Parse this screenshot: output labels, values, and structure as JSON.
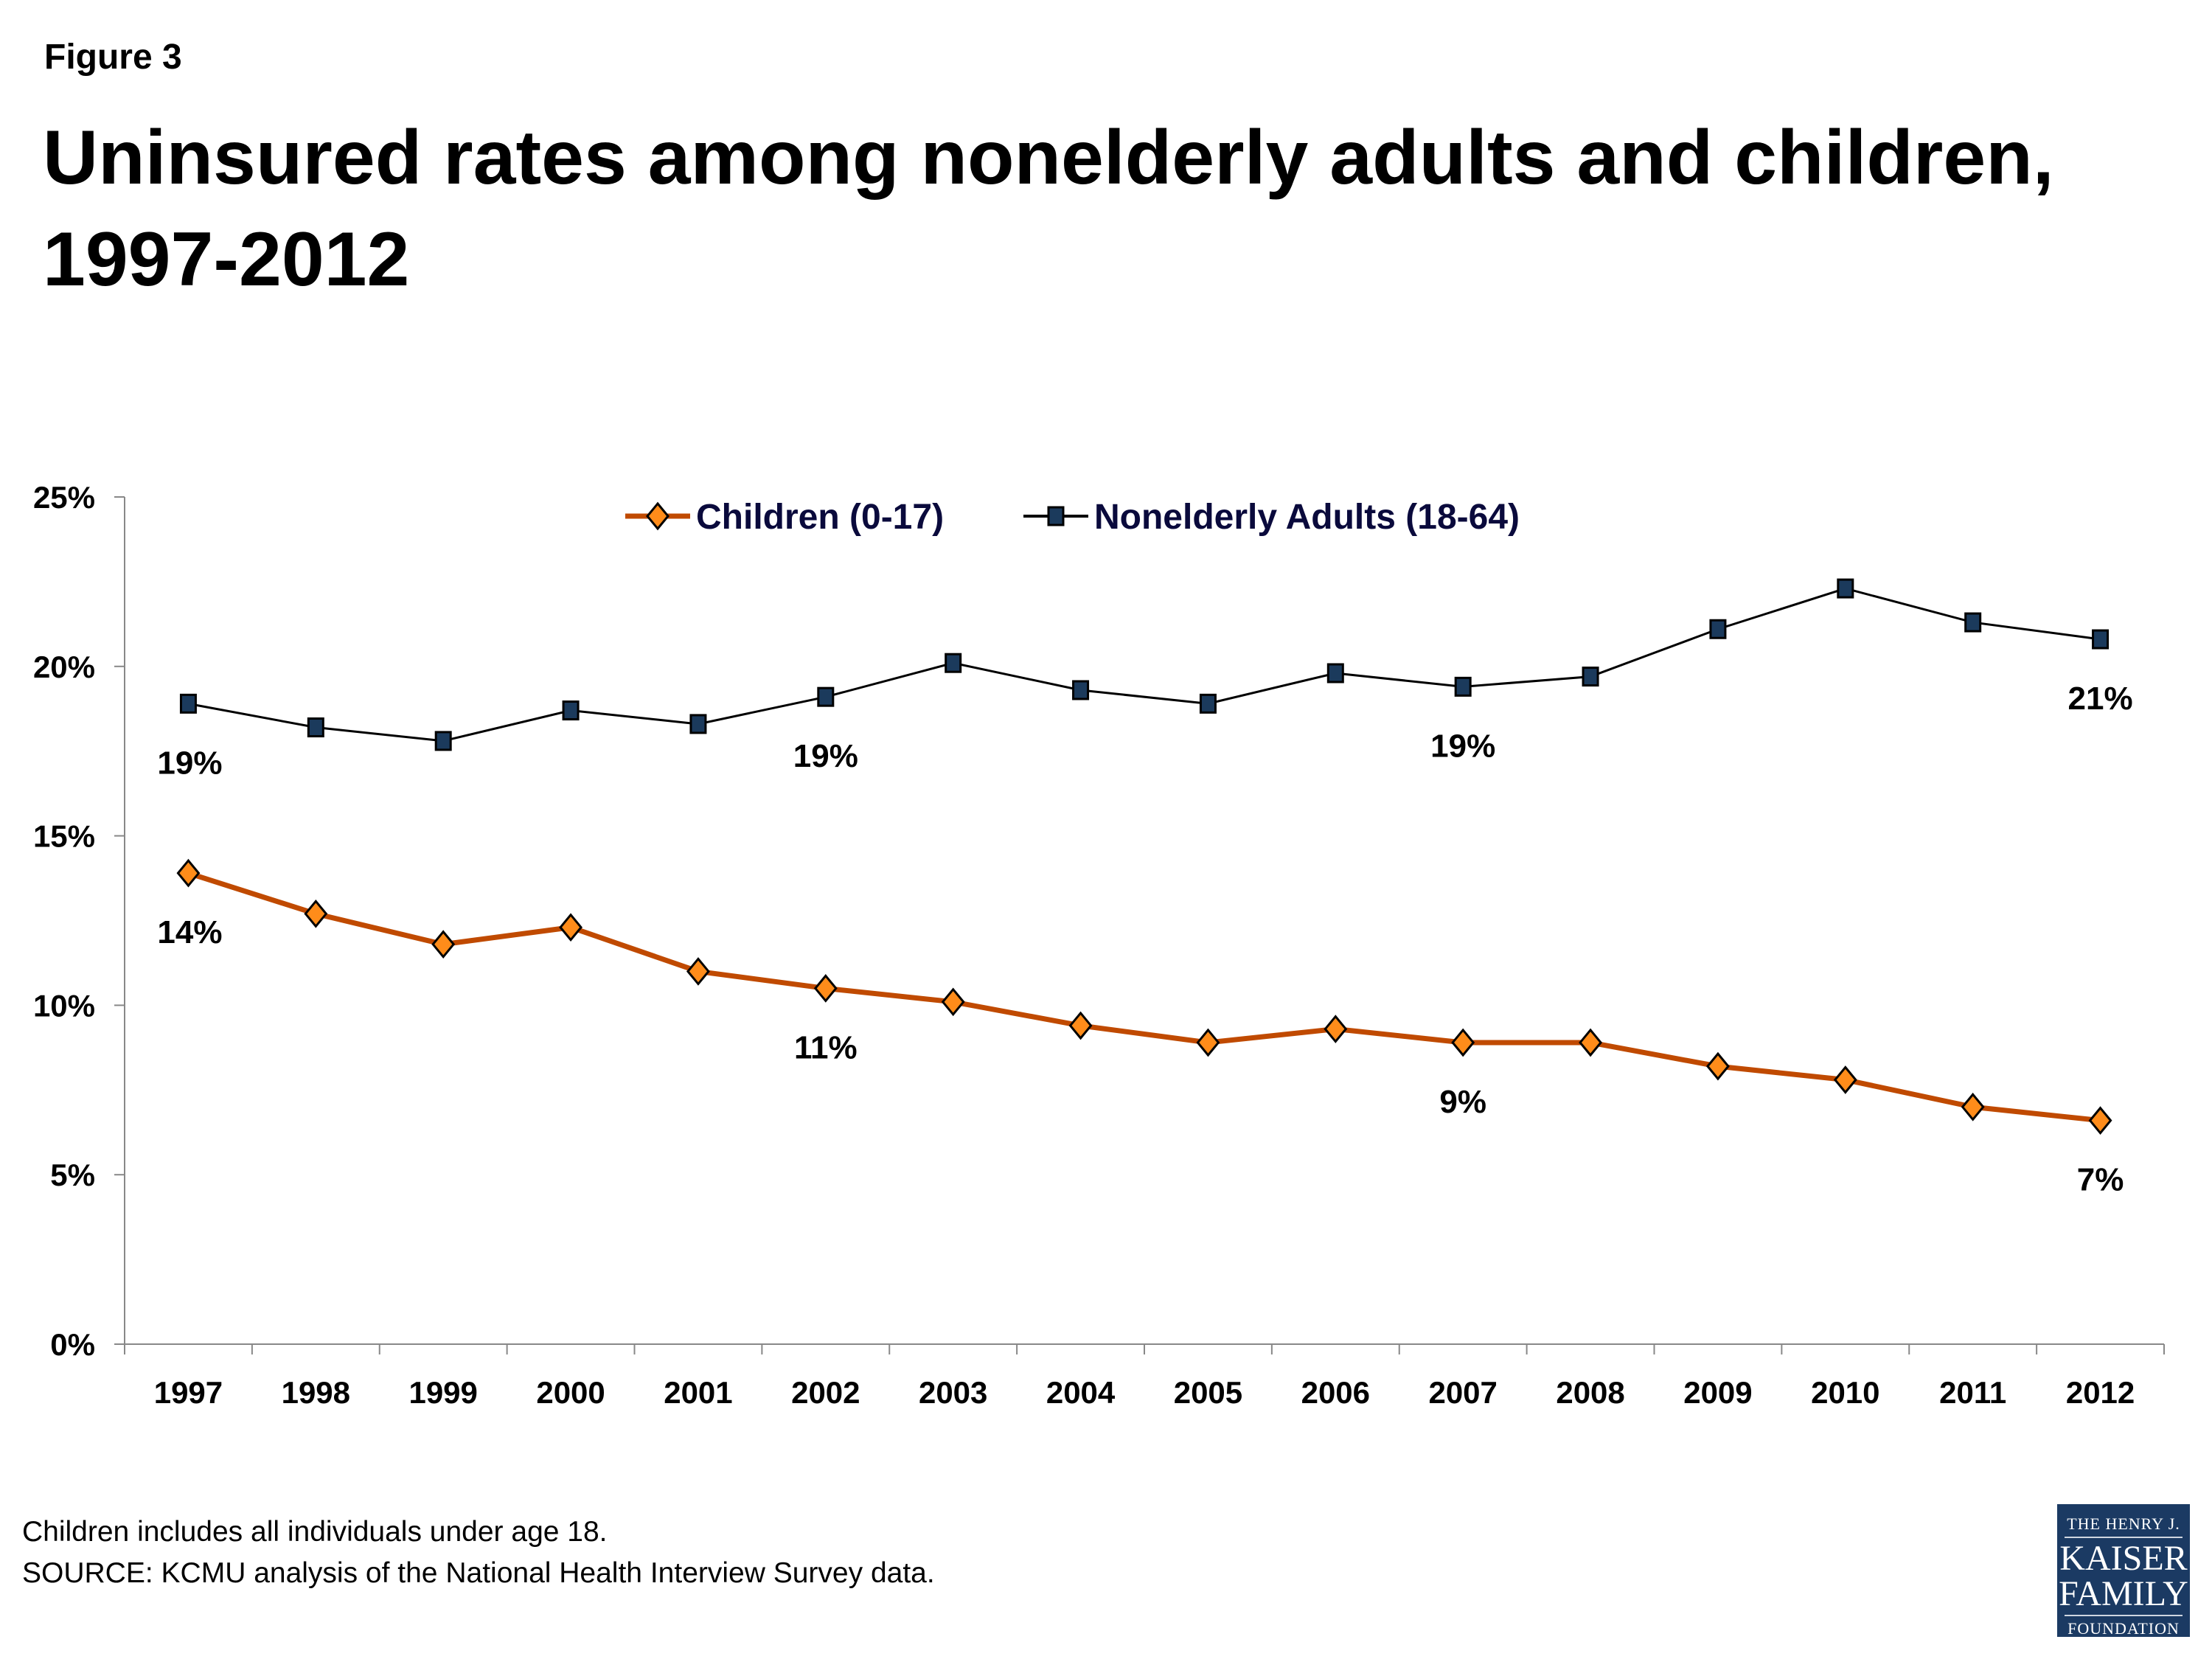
{
  "figure_label": "Figure 3",
  "title": "Uninsured rates among nonelderly adults and children, 1997-2012",
  "notes": [
    "Children includes all individuals under age 18.",
    "SOURCE:  KCMU analysis of the National Health Interview Survey data."
  ],
  "logo": {
    "line1": "THE HENRY J.",
    "line2": "KAISER",
    "line3": "FAMILY",
    "line4": "FOUNDATION"
  },
  "chart_data": {
    "type": "line",
    "title": "",
    "xlabel": "",
    "ylabel": "",
    "ylim": [
      0,
      25
    ],
    "yticks": [
      "0%",
      "5%",
      "10%",
      "15%",
      "20%",
      "25%"
    ],
    "grid": false,
    "legend_position": "top",
    "categories": [
      "1997",
      "1998",
      "1999",
      "2000",
      "2001",
      "2002",
      "2003",
      "2004",
      "2005",
      "2006",
      "2007",
      "2008",
      "2009",
      "2010",
      "2011",
      "2012"
    ],
    "series": [
      {
        "name": "Children (0-17)",
        "color": "#c04a00",
        "marker_color": "#ff8c1a",
        "marker": "diamond",
        "values": [
          13.9,
          12.7,
          11.8,
          12.3,
          11.0,
          10.5,
          10.1,
          9.4,
          8.9,
          9.3,
          8.9,
          8.9,
          8.2,
          7.8,
          7.0,
          6.6
        ],
        "data_labels": {
          "1997": "14%",
          "2002": "11%",
          "2007": "9%",
          "2012": "7%"
        }
      },
      {
        "name": "Nonelderly Adults (18-64)",
        "color": "#000000",
        "marker_color": "#1b3a5c",
        "marker": "square",
        "values": [
          18.9,
          18.2,
          17.8,
          18.7,
          18.3,
          19.1,
          20.1,
          19.3,
          18.9,
          19.8,
          19.4,
          19.7,
          21.1,
          22.3,
          21.3,
          20.8
        ],
        "data_labels": {
          "1997": "19%",
          "2002": "19%",
          "2007": "19%",
          "2012": "21%"
        }
      }
    ]
  }
}
